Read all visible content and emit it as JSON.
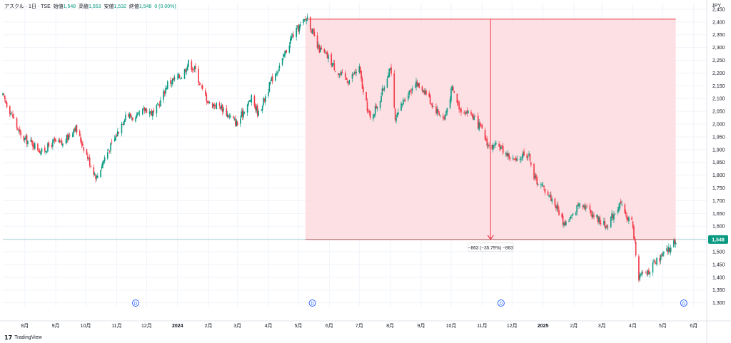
{
  "legend": {
    "symbol": "アスクル · 1日 · TSE",
    "open_label": "始値",
    "open": "1,548",
    "high_label": "高値",
    "high": "1,553",
    "low_label": "安値",
    "low": "1,532",
    "close_label": "終値",
    "close": "1,548",
    "change": "0 (0.00%)"
  },
  "currency": "JPY",
  "branding": "TradingView",
  "colors": {
    "up": "#089981",
    "down": "#f23645",
    "range_fill": "#fddde0",
    "range_line": "#f23645",
    "badge": "#089981"
  },
  "measure_label": "−863 (−35.79%) −863",
  "last_price_badge": "1,548",
  "dividend_marker": "D",
  "chart_data": {
    "type": "candlestick",
    "y_axis": {
      "ylim": [
        1285,
        2475
      ],
      "ticks": [
        1300,
        1350,
        1400,
        1450,
        1500,
        1550,
        1600,
        1650,
        1700,
        1750,
        1800,
        1850,
        1900,
        1950,
        2000,
        2050,
        2100,
        2150,
        2200,
        2250,
        2300,
        2350,
        2400,
        2450
      ],
      "tick_labels": [
        "1,300",
        "1,350",
        "1,400",
        "1,450",
        "1,500",
        "1,550",
        "1,600",
        "1,650",
        "1,700",
        "1,750",
        "1,800",
        "1,850",
        "1,900",
        "1,950",
        "2,000",
        "2,050",
        "2,100",
        "2,150",
        "2,200",
        "2,250",
        "2,300",
        "2,350",
        "2,400",
        "2,450"
      ]
    },
    "x_axis": {
      "range": [
        "2023-07-10",
        "2025-06-14"
      ],
      "ticks": [
        {
          "date": "2023-08-01",
          "label": "8月"
        },
        {
          "date": "2023-09-01",
          "label": "9月"
        },
        {
          "date": "2023-10-01",
          "label": "10月"
        },
        {
          "date": "2023-11-01",
          "label": "11月"
        },
        {
          "date": "2023-12-01",
          "label": "12月"
        },
        {
          "date": "2024-01-01",
          "label": "2024"
        },
        {
          "date": "2024-02-01",
          "label": "2月"
        },
        {
          "date": "2024-03-01",
          "label": "3月"
        },
        {
          "date": "2024-04-01",
          "label": "4月"
        },
        {
          "date": "2024-05-01",
          "label": "5月"
        },
        {
          "date": "2024-06-01",
          "label": "6月"
        },
        {
          "date": "2024-07-01",
          "label": "7月"
        },
        {
          "date": "2024-08-01",
          "label": "8月"
        },
        {
          "date": "2024-09-01",
          "label": "9月"
        },
        {
          "date": "2024-10-01",
          "label": "10月"
        },
        {
          "date": "2024-11-01",
          "label": "11月"
        },
        {
          "date": "2024-12-01",
          "label": "12月"
        },
        {
          "date": "2025-01-01",
          "label": "2025"
        },
        {
          "date": "2025-02-01",
          "label": "2月"
        },
        {
          "date": "2025-03-01",
          "label": "3月"
        },
        {
          "date": "2025-04-01",
          "label": "4月"
        },
        {
          "date": "2025-05-01",
          "label": "5月"
        },
        {
          "date": "2025-06-01",
          "label": "6月"
        }
      ]
    },
    "close_path": [
      [
        "2023-07-10",
        2110
      ],
      [
        "2023-07-20",
        2030
      ],
      [
        "2023-07-28",
        1950
      ],
      [
        "2023-08-10",
        1920
      ],
      [
        "2023-08-18",
        1890
      ],
      [
        "2023-08-30",
        1930
      ],
      [
        "2023-09-08",
        1920
      ],
      [
        "2023-09-20",
        1990
      ],
      [
        "2023-09-29",
        1910
      ],
      [
        "2023-10-06",
        1840
      ],
      [
        "2023-10-12",
        1790
      ],
      [
        "2023-10-20",
        1870
      ],
      [
        "2023-10-31",
        1950
      ],
      [
        "2023-11-10",
        2040
      ],
      [
        "2023-11-20",
        2020
      ],
      [
        "2023-11-30",
        2060
      ],
      [
        "2023-12-08",
        2040
      ],
      [
        "2023-12-15",
        2090
      ],
      [
        "2023-12-22",
        2160
      ],
      [
        "2024-01-05",
        2190
      ],
      [
        "2024-01-12",
        2240
      ],
      [
        "2024-01-19",
        2210
      ],
      [
        "2024-01-26",
        2130
      ],
      [
        "2024-02-02",
        2080
      ],
      [
        "2024-02-13",
        2070
      ],
      [
        "2024-02-22",
        2030
      ],
      [
        "2024-03-01",
        2000
      ],
      [
        "2024-03-08",
        2060
      ],
      [
        "2024-03-15",
        2100
      ],
      [
        "2024-03-22",
        2040
      ],
      [
        "2024-03-29",
        2110
      ],
      [
        "2024-04-05",
        2180
      ],
      [
        "2024-04-15",
        2250
      ],
      [
        "2024-04-24",
        2340
      ],
      [
        "2024-05-02",
        2380
      ],
      [
        "2024-05-10",
        2420
      ],
      [
        "2024-05-20",
        2300
      ],
      [
        "2024-05-31",
        2260
      ],
      [
        "2024-06-10",
        2200
      ],
      [
        "2024-06-20",
        2170
      ],
      [
        "2024-07-01",
        2220
      ],
      [
        "2024-07-05",
        2120
      ],
      [
        "2024-07-12",
        2020
      ],
      [
        "2024-07-22",
        2100
      ],
      [
        "2024-08-01",
        2230
      ],
      [
        "2024-08-06",
        2010
      ],
      [
        "2024-08-15",
        2100
      ],
      [
        "2024-08-26",
        2160
      ],
      [
        "2024-09-05",
        2130
      ],
      [
        "2024-09-13",
        2070
      ],
      [
        "2024-09-24",
        2020
      ],
      [
        "2024-10-02",
        2140
      ],
      [
        "2024-10-10",
        2060
      ],
      [
        "2024-10-21",
        2040
      ],
      [
        "2024-10-31",
        1980
      ],
      [
        "2024-11-08",
        1910
      ],
      [
        "2024-11-19",
        1910
      ],
      [
        "2024-11-29",
        1870
      ],
      [
        "2024-12-06",
        1850
      ],
      [
        "2024-12-13",
        1890
      ],
      [
        "2024-12-19",
        1870
      ],
      [
        "2024-12-23",
        1790
      ],
      [
        "2025-01-06",
        1730
      ],
      [
        "2025-01-14",
        1680
      ],
      [
        "2025-01-22",
        1610
      ],
      [
        "2025-01-31",
        1640
      ],
      [
        "2025-02-07",
        1700
      ],
      [
        "2025-02-14",
        1670
      ],
      [
        "2025-02-25",
        1630
      ],
      [
        "2025-03-05",
        1600
      ],
      [
        "2025-03-13",
        1650
      ],
      [
        "2025-03-19",
        1690
      ],
      [
        "2025-03-25",
        1640
      ],
      [
        "2025-03-31",
        1620
      ],
      [
        "2025-04-04",
        1500
      ],
      [
        "2025-04-07",
        1400
      ],
      [
        "2025-04-15",
        1420
      ],
      [
        "2025-04-25",
        1460
      ],
      [
        "2025-05-02",
        1490
      ],
      [
        "2025-05-09",
        1515
      ],
      [
        "2025-05-14",
        1548
      ]
    ],
    "last_close": 1548,
    "measure": {
      "start_date": "2024-05-08",
      "end_date": "2025-05-14",
      "start_price": 2411,
      "end_price": 1548,
      "change": -863,
      "change_pct": -35.79
    },
    "dividend_dates": [
      "2023-11-20",
      "2024-05-15",
      "2024-11-20",
      "2025-05-22"
    ]
  }
}
